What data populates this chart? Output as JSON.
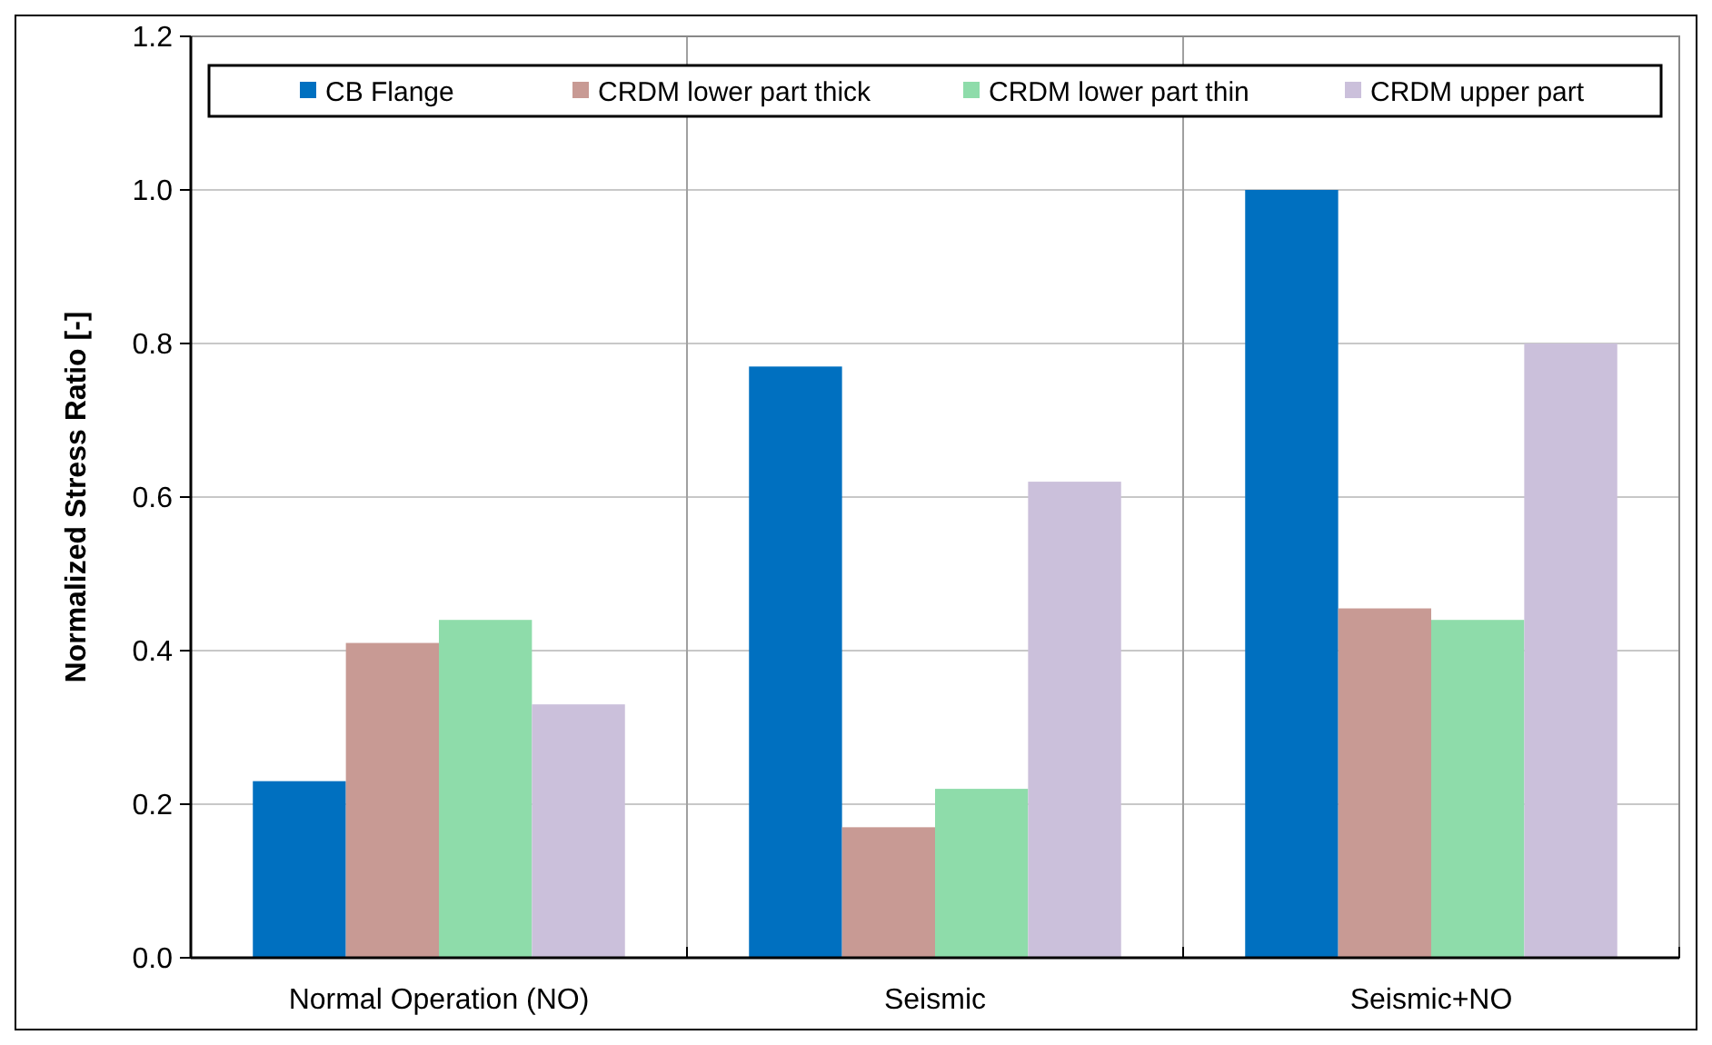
{
  "chart_data": {
    "type": "bar",
    "ylabel": "Normalized Stress Ratio [-]",
    "categories": [
      "Normal Operation (NO)",
      "Seismic",
      "Seismic+NO"
    ],
    "series": [
      {
        "name": "CB Flange",
        "color": "#0070c0",
        "values": [
          0.23,
          0.77,
          1.0
        ]
      },
      {
        "name": "CRDM lower part thick",
        "color": "#c89a94",
        "values": [
          0.41,
          0.17,
          0.455
        ]
      },
      {
        "name": "CRDM lower part thin",
        "color": "#8edcaa",
        "values": [
          0.44,
          0.22,
          0.44
        ]
      },
      {
        "name": "CRDM upper part",
        "color": "#cbc0db",
        "values": [
          0.33,
          0.62,
          0.8
        ]
      }
    ],
    "ylim": [
      0,
      1.2
    ],
    "yticks": [
      {
        "value": 0,
        "label": "0.0"
      },
      {
        "value": 0.2,
        "label": "0.2"
      },
      {
        "value": 0.4,
        "label": "0.4"
      },
      {
        "value": 0.6,
        "label": "0.6"
      },
      {
        "value": 0.8,
        "label": "0.8"
      },
      {
        "value": 1,
        "label": "1.0"
      },
      {
        "value": 1.2,
        "label": "1.2"
      }
    ],
    "grid": true,
    "legend": "top"
  }
}
